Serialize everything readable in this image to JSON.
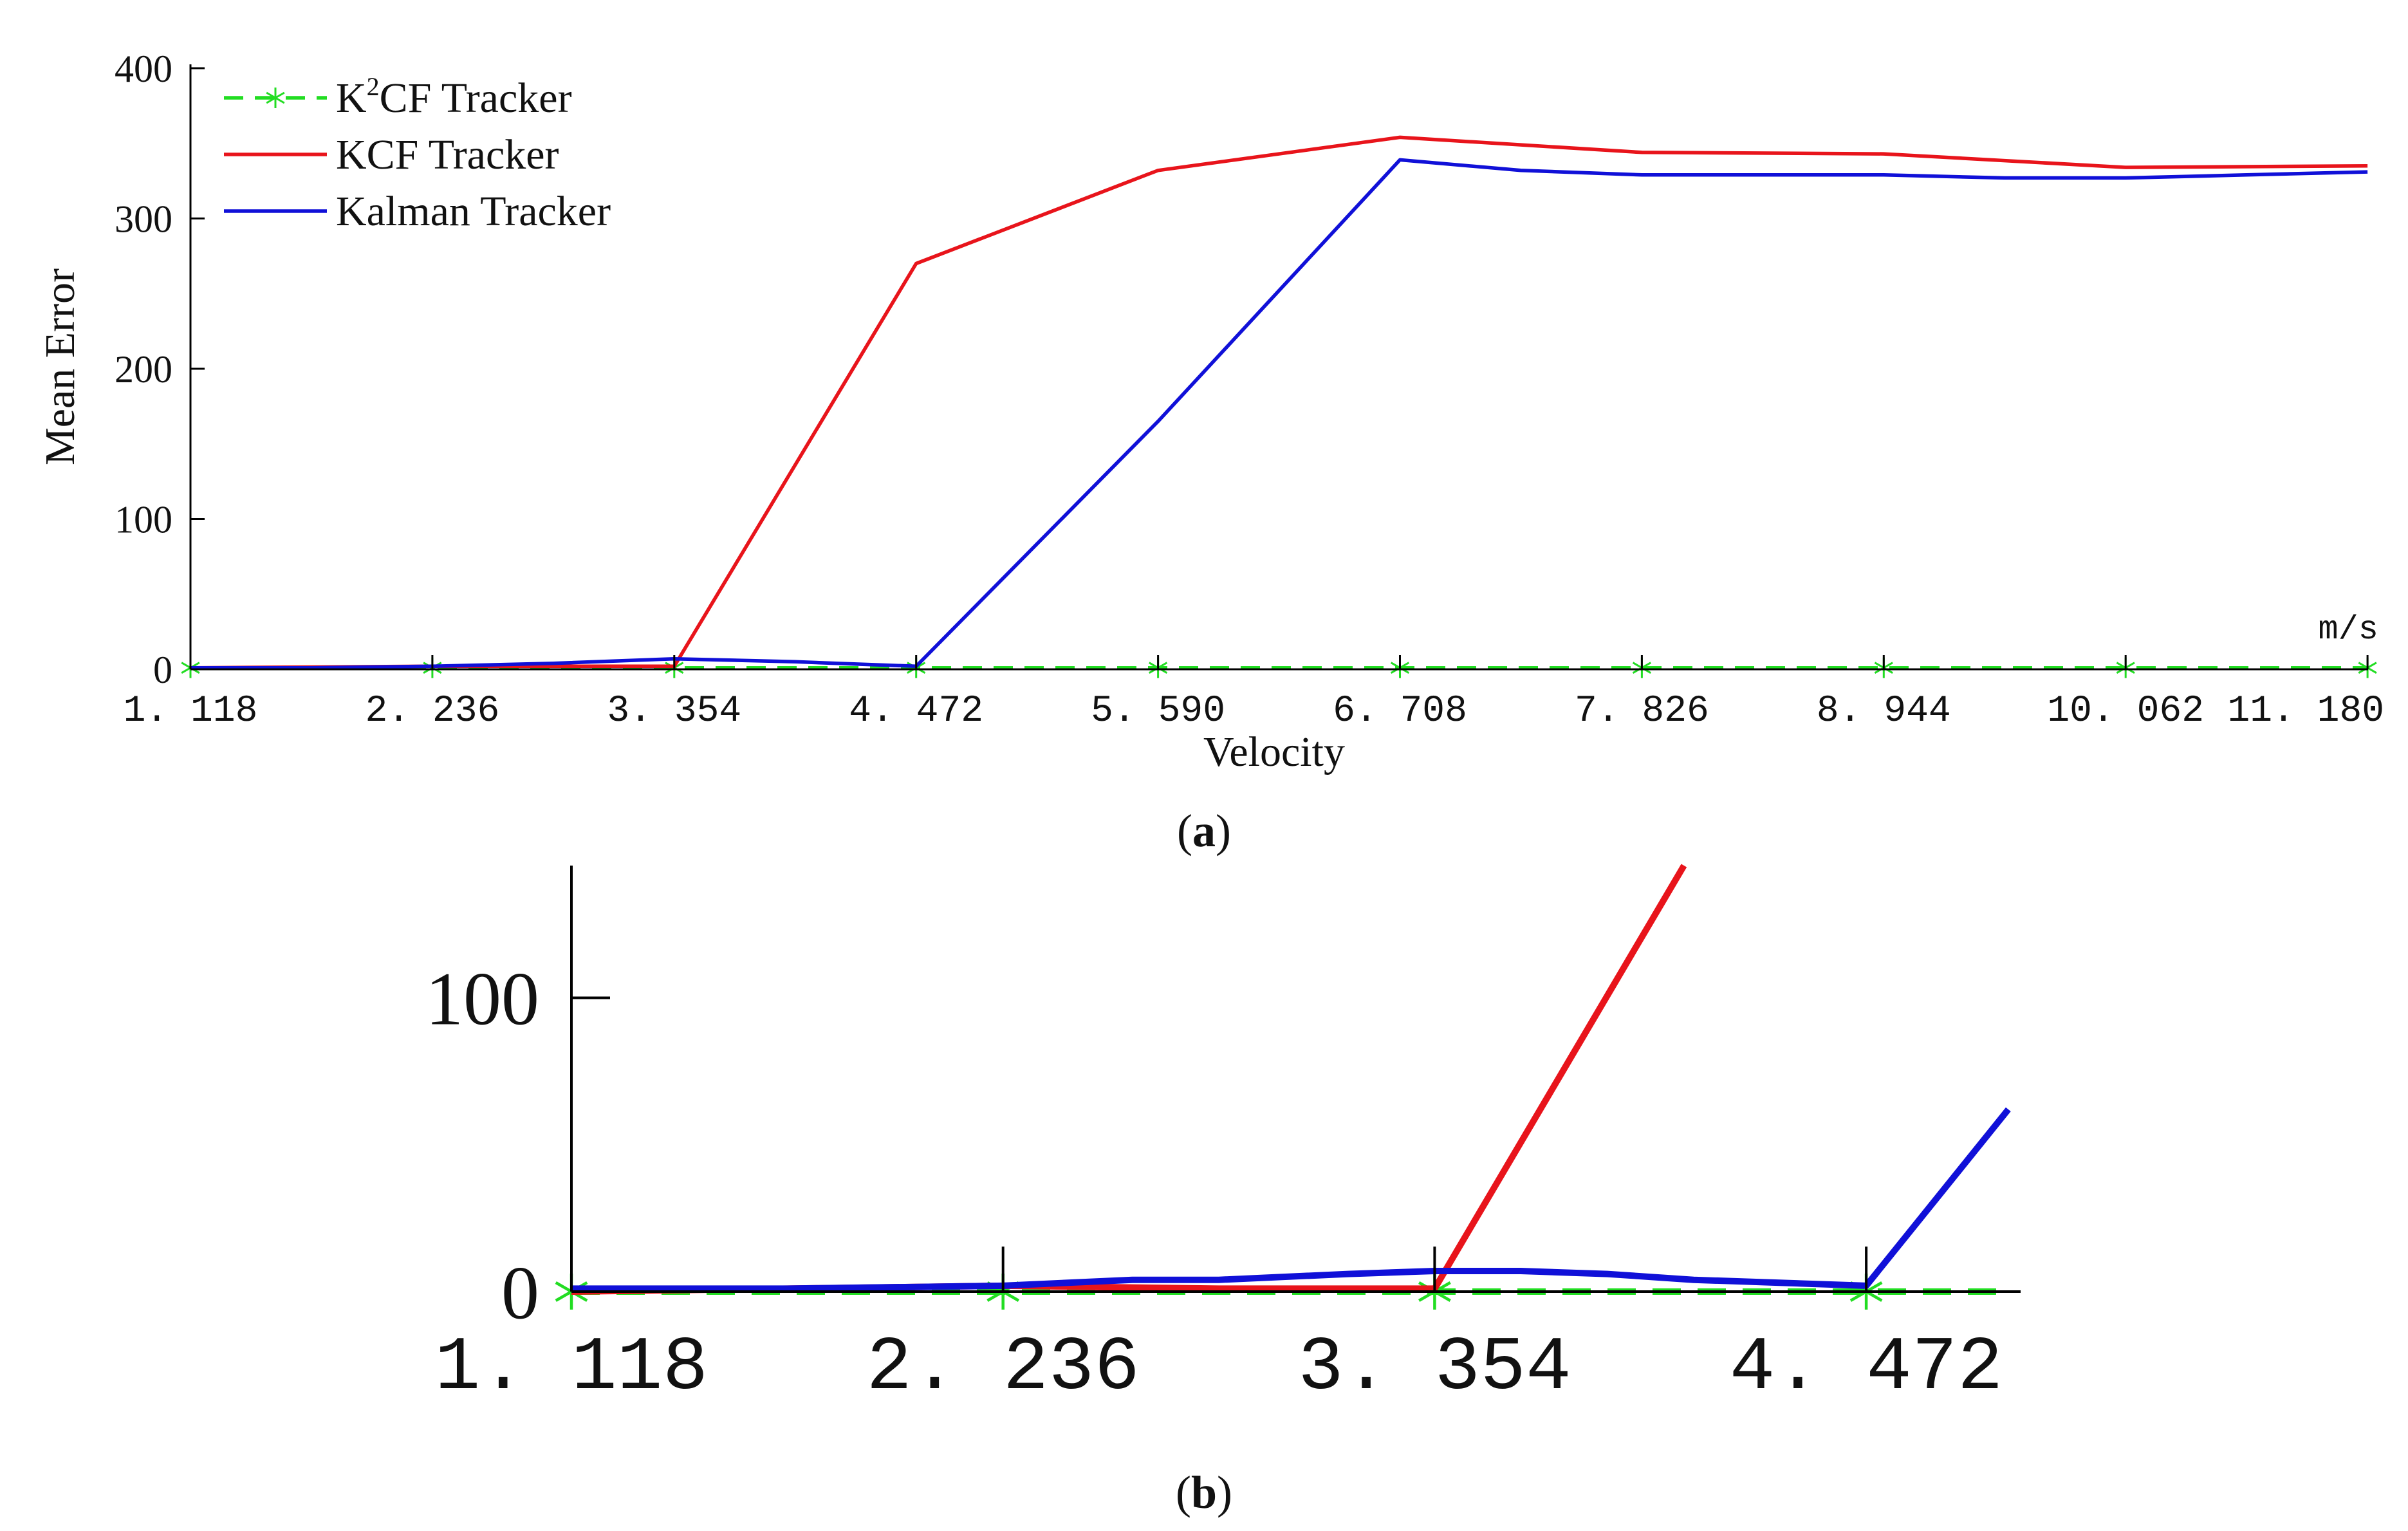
{
  "chart_data": [
    {
      "type": "line",
      "panel_label": "a",
      "xlabel": "Velocity",
      "x_unit": "m/s",
      "ylabel": "Mean Error",
      "x_categories": [
        "1. 118",
        "2. 236",
        "3. 354",
        "4. 472",
        "5. 590",
        "6. 708",
        "7. 826",
        "8. 944",
        "10. 062",
        "11. 180"
      ],
      "y_ticks": [
        "0",
        "100",
        "200",
        "300",
        "400"
      ],
      "ylim": [
        0,
        400
      ],
      "legend_position": "top-left",
      "series": [
        {
          "name": "K²CF Tracker",
          "legend_label": {
            "main": "K",
            "sup": "2",
            "rest": "CF Tracker"
          },
          "color": "#22dd22",
          "style": "dashed",
          "marker": "asterisk",
          "x": [
            1.118,
            2.236,
            3.354,
            4.472,
            5.59,
            6.708,
            7.826,
            8.944,
            10.062,
            11.18
          ],
          "y": [
            1,
            1,
            1,
            1,
            1,
            1,
            1,
            1,
            1,
            1
          ]
        },
        {
          "name": "KCF Tracker",
          "color": "#e8141b",
          "style": "solid",
          "x": [
            1.118,
            2.236,
            3.354,
            4.472,
            5.59,
            6.708,
            7.826,
            8.944,
            10.062,
            11.18
          ],
          "y": [
            1,
            2,
            2,
            270,
            332,
            354,
            344,
            343,
            334,
            335
          ]
        },
        {
          "name": "Kalman Tracker",
          "color": "#1010d8",
          "style": "solid",
          "x": [
            1.118,
            1.677,
            2.236,
            2.795,
            3.354,
            3.913,
            4.472,
            5.59,
            6.708,
            7.267,
            7.826,
            8.944,
            9.503,
            10.062,
            10.621,
            11.18
          ],
          "y": [
            1,
            1,
            2,
            4,
            7,
            5,
            2,
            165,
            339,
            332,
            329,
            329,
            327,
            327,
            329,
            331
          ]
        }
      ]
    },
    {
      "type": "line",
      "panel_label": "b",
      "x_categories": [
        "1. 118",
        "2. 236",
        "3. 354",
        "4. 472"
      ],
      "y_ticks": [
        "0",
        "100"
      ],
      "ylim": [
        0,
        145
      ],
      "series": [
        {
          "color": "#22dd22",
          "style": "dashed",
          "marker": "asterisk",
          "x": [
            1.118,
            2.236,
            3.354,
            4.472,
            4.84
          ],
          "y": [
            0,
            0,
            0,
            0,
            0
          ]
        },
        {
          "color": "#e8141b",
          "style": "solid",
          "x": [
            1.118,
            2.236,
            2.795,
            3.354,
            4.0
          ],
          "y": [
            0,
            2,
            1,
            1,
            145
          ]
        },
        {
          "color": "#1010d8",
          "style": "solid",
          "x": [
            1.118,
            1.677,
            2.236,
            2.571,
            2.795,
            3.13,
            3.354,
            3.577,
            3.801,
            4.025,
            4.248,
            4.472,
            4.84
          ],
          "y": [
            1,
            1,
            2,
            4,
            4,
            6,
            7,
            7,
            6,
            4,
            3,
            2,
            62
          ]
        }
      ]
    }
  ],
  "captions": {
    "a": "a",
    "b": "b"
  }
}
